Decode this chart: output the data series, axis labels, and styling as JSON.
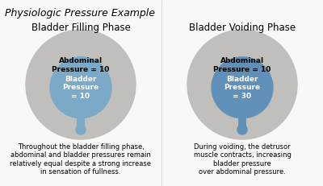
{
  "title": "Physiologic Pressure Example",
  "bg_color": "#f8f8f5",
  "left_title": "Bladder Filling Phase",
  "right_title": "Bladder Voiding Phase",
  "left_caption": "Throughout the bladder filling phase,\nabdominal and bladder pressures remain\nrelatively equal despite a strong increase\nin sensation of fullness.",
  "right_caption": "During voiding, the detrusor\nmuscle contracts, increasing\nbladder pressure\nover abdominal pressure.",
  "outer_circle_color": "#c0bfbc",
  "inner_circle_color_left": "#7aaac8",
  "inner_circle_color_right": "#6090b8",
  "left_outer_label": "Abdominal\nPressure = 10",
  "left_inner_label": "Bladder\nPressure\n= 10",
  "right_outer_label": "Abdominal\nPressure = 10",
  "right_inner_label": "Bladder\nPressure\n= 30",
  "font_size_title": 9,
  "font_size_subtitle": 8.5,
  "font_size_outer_label": 6.5,
  "font_size_inner_label": 6.5,
  "font_size_caption": 6.0
}
